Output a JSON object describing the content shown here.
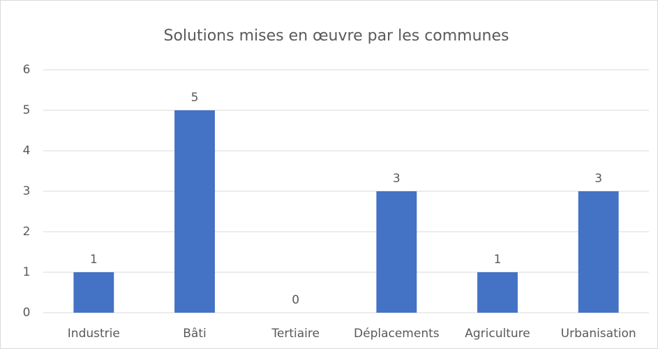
{
  "chart_data": {
    "type": "bar",
    "title": "Solutions mises en œuvre par les communes",
    "categories": [
      "Industrie",
      "Bâti",
      "Tertiaire",
      "Déplacements",
      "Agriculture",
      "Urbanisation"
    ],
    "values": [
      1,
      5,
      0,
      3,
      1,
      3
    ],
    "color": "#4472c4",
    "ylim": [
      0,
      6
    ],
    "yticks": [
      0,
      1,
      2,
      3,
      4,
      5,
      6
    ],
    "grid": true
  }
}
